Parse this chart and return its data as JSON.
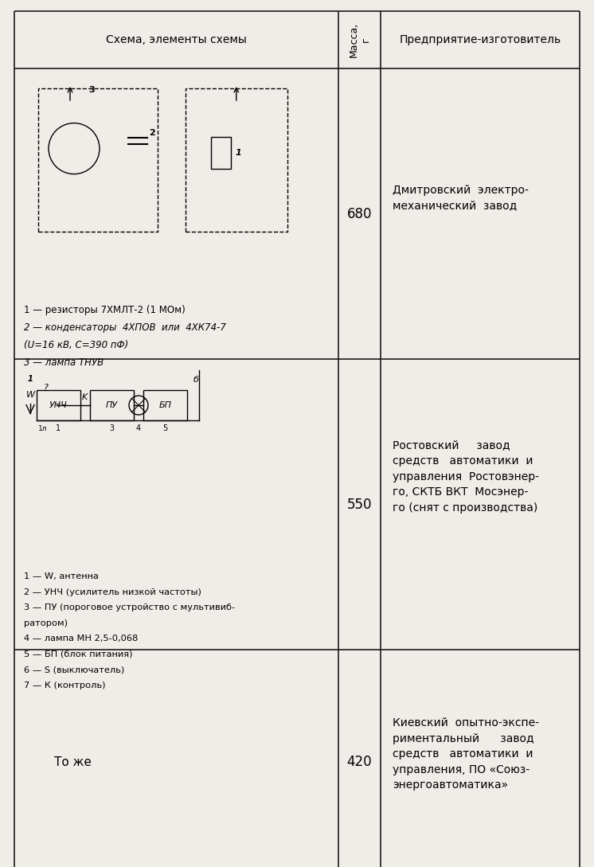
{
  "bg_color": "#f0ede8",
  "border_color": "#1a1a1a",
  "header_row": {
    "col1": "Схема, элементы схемы",
    "col2": "Масса,\nг",
    "col3": "Предприятие-изготовитель"
  },
  "rows": [
    {
      "mass": "680",
      "manufacturer": "Дмитровский  электро-\nмеханический  завод",
      "description_lines": [
        "1 — резисторы 7ХМЛТ-2 (1 МОм)",
        "2 — конденсаторы  4ХПОВ  или  4ХК74-7",
        "(U=16 кВ, C=390 пФ)",
        "3 — лампа ТНУВ"
      ]
    },
    {
      "mass": "550",
      "manufacturer": "Ростовский     завод\nсредств   автоматики  и\nуправления  Ростовэнер-\nго, СКТБ ВКТ  Мосэнер-\nго (снят с производства)",
      "description_lines": [
        "1 — W, антенна",
        "2 — УНЧ (усилитель низкой частоты)",
        "3 — ПУ (пороговое устройство с мультивиб-",
        "ратором)",
        "4 — лампа МН 2,5-0,068",
        "5 — БП (блок питания)",
        "6 — S (выключатель)",
        "7 — К (контроль)"
      ]
    },
    {
      "mass": "420",
      "manufacturer": "Киевский  опытно-экспе-\nриментальный      завод\nсредств   автоматики  и\nуправления, ПО «Союз-\nэнергоавтоматика»",
      "description_lines": [
        "То же"
      ]
    }
  ]
}
